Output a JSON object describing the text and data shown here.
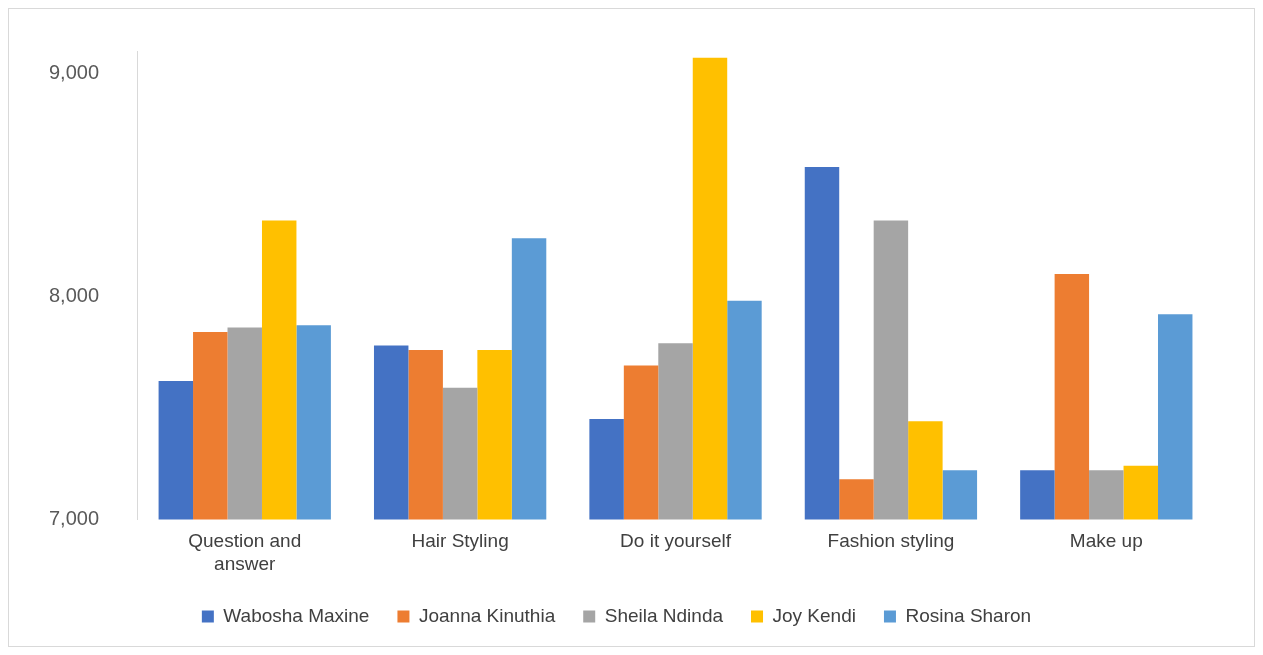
{
  "chart_data": {
    "type": "bar",
    "categories": [
      "Question and answer",
      "Hair Styling",
      "Do it yourself",
      "Fashion styling",
      "Make up"
    ],
    "series": [
      {
        "name": "Wabosha Maxine",
        "color": "#4472c4",
        "values": [
          7620,
          7780,
          7450,
          8580,
          7220
        ]
      },
      {
        "name": "Joanna Kinuthia",
        "color": "#ed7d31",
        "values": [
          7840,
          7760,
          7690,
          7180,
          8100
        ]
      },
      {
        "name": "Sheila Ndinda",
        "color": "#a5a5a5",
        "values": [
          7860,
          7590,
          7790,
          8340,
          7220
        ]
      },
      {
        "name": "Joy Kendi",
        "color": "#ffc000",
        "values": [
          8340,
          7760,
          9070,
          7440,
          7240
        ]
      },
      {
        "name": "Rosina Sharon",
        "color": "#5b9bd5",
        "values": [
          7870,
          8260,
          7980,
          7220,
          7920
        ]
      }
    ],
    "ylim": [
      7000,
      9100
    ],
    "yticks": [
      {
        "value": 7000,
        "label": "7,000"
      },
      {
        "value": 8000,
        "label": "8,000"
      },
      {
        "value": 9000,
        "label": "9,000"
      }
    ],
    "grid": false,
    "legend": "bottom"
  }
}
